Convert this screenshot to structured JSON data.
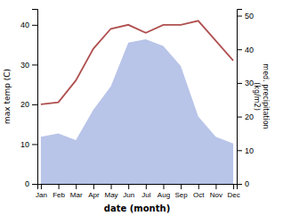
{
  "chart_data": {
    "type": "line",
    "xlabel": "date (month)",
    "ylabel": "max temp (C)",
    "y2label": "med. precipitation\n(kg/m2)",
    "categories": [
      "Jan",
      "Feb",
      "Mar",
      "Apr",
      "May",
      "Jun",
      "Jul",
      "Aug",
      "Sep",
      "Oct",
      "Nov",
      "Dec"
    ],
    "series": [
      {
        "type": "area",
        "axis": "y2",
        "color": "#b8c4e8",
        "values": [
          14,
          15,
          13,
          22,
          29,
          42,
          43,
          41,
          35,
          20,
          14,
          12
        ]
      },
      {
        "type": "line",
        "color": "#b05050",
        "values": [
          20,
          20.5,
          26,
          34,
          39,
          40,
          38,
          40,
          40,
          41,
          36,
          31
        ]
      }
    ],
    "ylim": [
      0,
      44
    ],
    "yticks": [
      0,
      10,
      20,
      30,
      40
    ],
    "y2lim": [
      0,
      52
    ],
    "y2ticks": [
      0,
      10,
      20,
      30,
      40,
      50
    ]
  }
}
